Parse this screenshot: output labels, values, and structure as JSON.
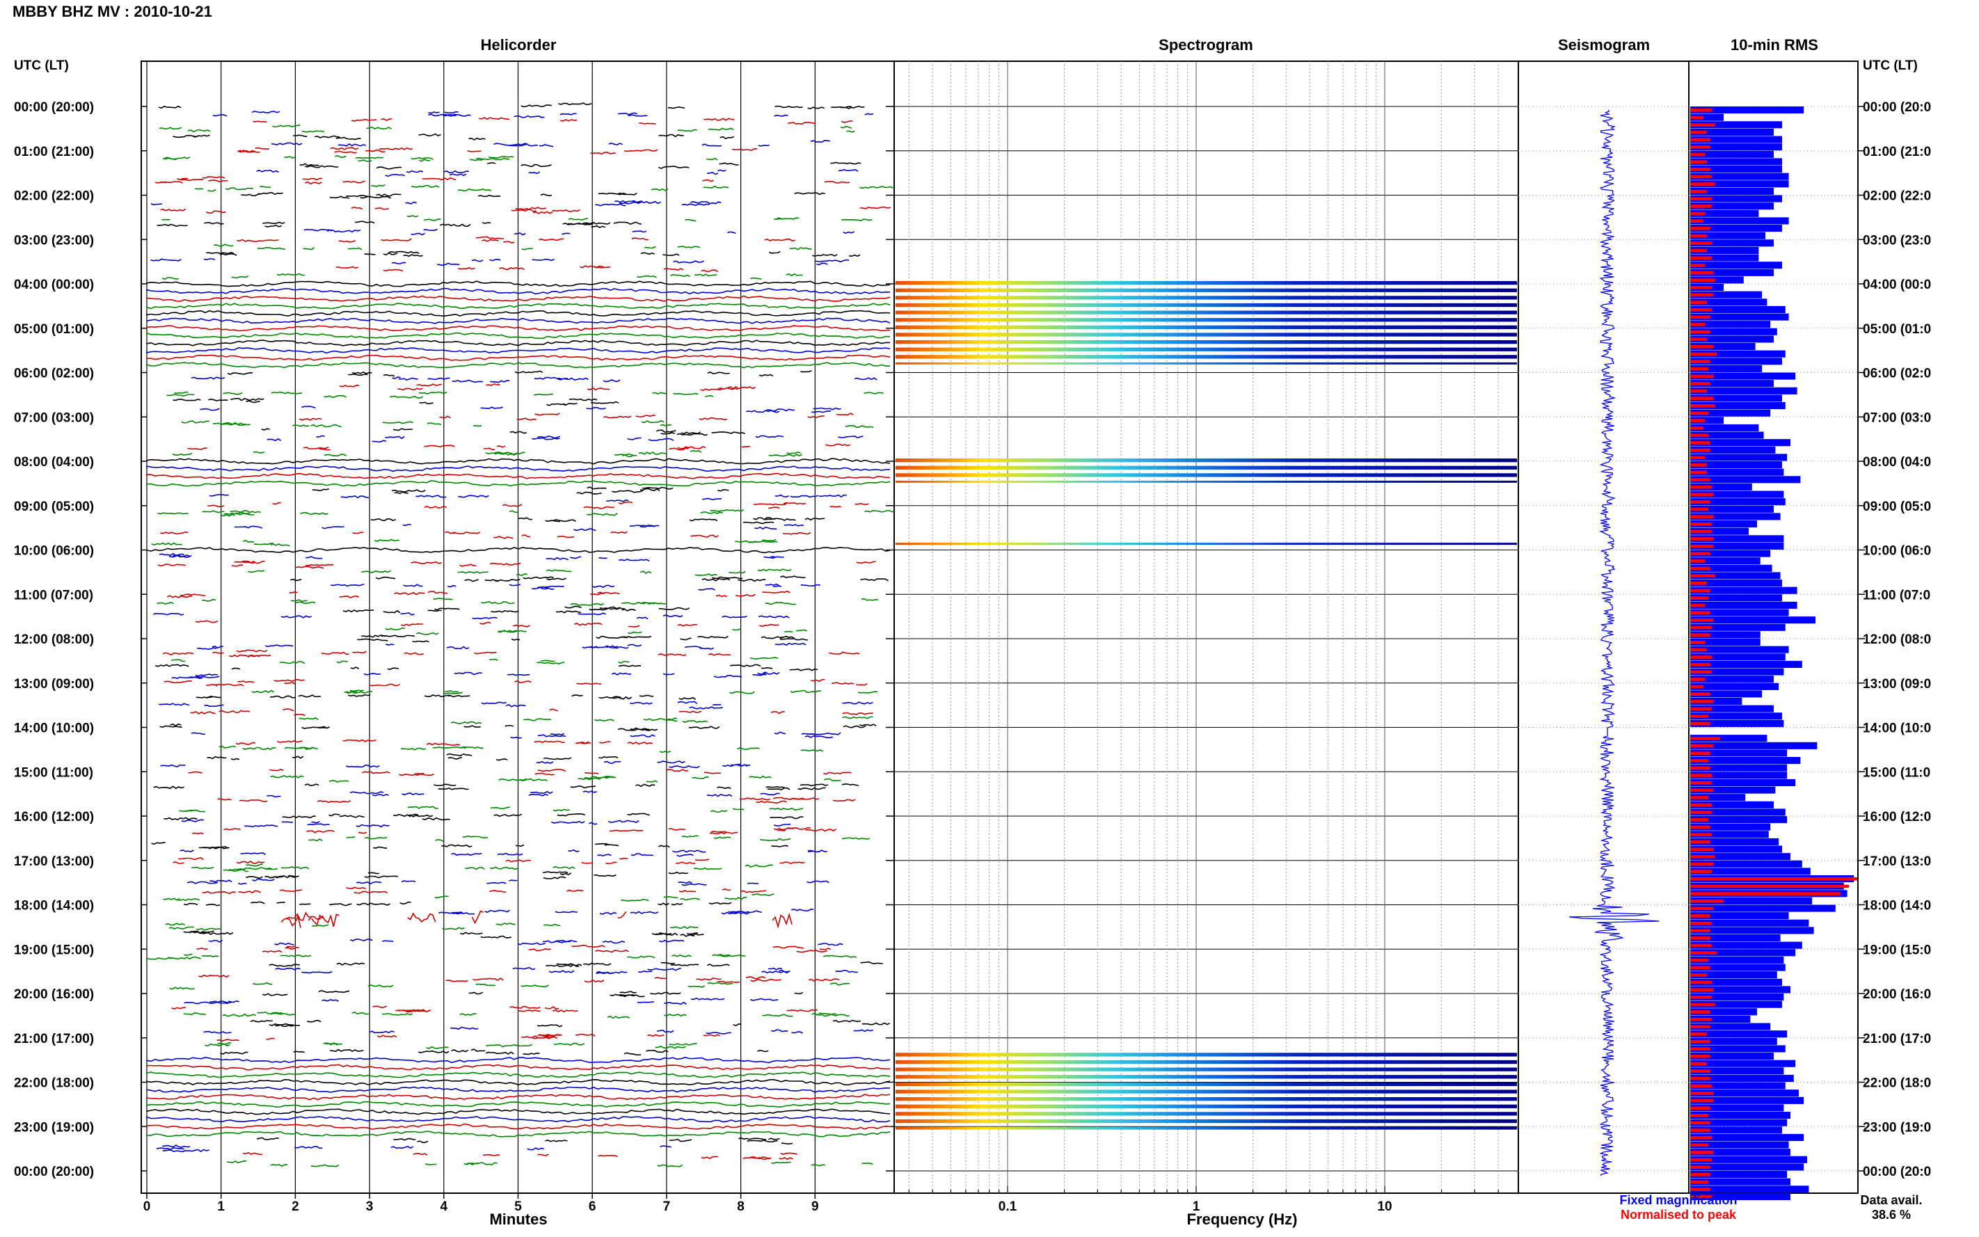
{
  "page": {
    "title": "MBBY BHZ MV : 2010-10-21"
  },
  "panels": {
    "helicorder": "Helicorder",
    "spectrogram": "Spectrogram",
    "seismogram": "Seismogram",
    "rms": "10-min RMS"
  },
  "time_axis": {
    "label": "UTC (LT)",
    "ticks": [
      "00:00 (20:00)",
      "01:00 (21:00)",
      "02:00 (22:00)",
      "03:00 (23:00)",
      "04:00 (00:00)",
      "05:00 (01:00)",
      "06:00 (02:00)",
      "07:00 (03:00)",
      "08:00 (04:00)",
      "09:00 (05:00)",
      "10:00 (06:00)",
      "11:00 (07:00)",
      "12:00 (08:00)",
      "13:00 (09:00)",
      "14:00 (10:00)",
      "15:00 (11:00)",
      "16:00 (12:00)",
      "17:00 (13:00)",
      "18:00 (14:00)",
      "19:00 (15:00)",
      "20:00 (16:00)",
      "21:00 (17:00)",
      "22:00 (18:00)",
      "23:00 (19:00)",
      "00:00 (20:00)"
    ],
    "right_ticks": [
      "00:00 (20:0",
      "01:00 (21:0",
      "02:00 (22:0",
      "03:00 (23:0",
      "04:00 (00:0",
      "05:00 (01:0",
      "06:00 (02:0",
      "07:00 (03:0",
      "08:00 (04:0",
      "09:00 (05:0",
      "10:00 (06:0",
      "11:00 (07:0",
      "12:00 (08:0",
      "13:00 (09:0",
      "14:00 (10:0",
      "15:00 (11:0",
      "16:00 (12:0",
      "17:00 (13:0",
      "18:00 (14:0",
      "19:00 (15:0",
      "20:00 (16:0",
      "21:00 (17:0",
      "22:00 (18:0",
      "23:00 (19:0",
      "00:00 (20:0"
    ]
  },
  "helicorder_axis": {
    "xlabel": "Minutes",
    "ticks": [
      "0",
      "1",
      "2",
      "3",
      "4",
      "5",
      "6",
      "7",
      "8",
      "9"
    ]
  },
  "spectrogram_axis": {
    "xlabel": "Frequency (Hz)",
    "ticks": [
      "0.1",
      "1",
      "10"
    ]
  },
  "legend": {
    "fixed": "Fixed magnification",
    "normalised": "Normalised to peak",
    "fixed_color": "#0000ff",
    "normalised_color": "#ff0000"
  },
  "data_availability": {
    "label": "Data avail.",
    "value": "38.6 %"
  },
  "colors": {
    "trace_colors": [
      "#000000",
      "#0000cc",
      "#cc0000",
      "#008800"
    ],
    "rms_fixed": "#0000ff",
    "rms_normalised": "#ff0000",
    "spectrogram_low": "#ff6600",
    "spectrogram_high": "#00008b"
  },
  "chart_data": {
    "type": "helicorder",
    "date": "2010-10-21",
    "station": "MBBY BHZ MV",
    "minutes_per_line": 10,
    "x_minutes_range": [
      0,
      10
    ],
    "frequency_range_hz": [
      0.03,
      40
    ],
    "frequency_scale": "log",
    "spectrogram_active_ranges_utc_hours": [
      [
        4.0,
        5.9
      ],
      [
        8.0,
        8.6
      ],
      [
        9.9,
        10.0
      ],
      [
        21.4,
        23.2
      ]
    ],
    "rms_10min": {
      "fixed": [
        0.68,
        0.2,
        0.55,
        0.5,
        0.55,
        0.55,
        0.5,
        0.55,
        0.55,
        0.59,
        0.59,
        0.5,
        0.55,
        0.5,
        0.41,
        0.59,
        0.55,
        0.45,
        0.5,
        0.41,
        0.41,
        0.55,
        0.5,
        0.32,
        0.2,
        0.43,
        0.46,
        0.57,
        0.59,
        0.48,
        0.52,
        0.5,
        0.39,
        0.57,
        0.55,
        0.43,
        0.63,
        0.5,
        0.64,
        0.55,
        0.57,
        0.48,
        0.2,
        0.41,
        0.44,
        0.6,
        0.51,
        0.58,
        0.55,
        0.56,
        0.66,
        0.37,
        0.56,
        0.57,
        0.5,
        0.54,
        0.4,
        0.35,
        0.56,
        0.56,
        0.48,
        0.42,
        0.49,
        0.54,
        0.55,
        0.64,
        0.55,
        0.64,
        0.59,
        0.75,
        0.57,
        0.42,
        0.42,
        0.59,
        0.57,
        0.67,
        0.56,
        0.5,
        0.53,
        0.43,
        0.31,
        0.5,
        0.55,
        0.56,
        0.73,
        0.46,
        0.76,
        0.58,
        0.66,
        0.58,
        0.58,
        0.63,
        0.51,
        0.33,
        0.5,
        0.57,
        0.58,
        0.48,
        0.47,
        0.53,
        0.55,
        0.6,
        0.67,
        0.72,
        0.98,
        0.92,
        0.94,
        0.73,
        0.87,
        0.59,
        0.71,
        0.74,
        0.54,
        0.67,
        0.63,
        0.56,
        0.57,
        0.52,
        0.55,
        0.6,
        0.56,
        0.55,
        0.4,
        0.36,
        0.48,
        0.58,
        0.52,
        0.57,
        0.5,
        0.63,
        0.56,
        0.62,
        0.57,
        0.65,
        0.68,
        0.56,
        0.6,
        0.58,
        0.55,
        0.68,
        0.59,
        0.6,
        0.7,
        0.68,
        0.58,
        0.6,
        0.71,
        0.6
      ],
      "normalised": [
        0.13,
        0.08,
        0.15,
        0.1,
        0.12,
        0.12,
        0.09,
        0.1,
        0.12,
        0.13,
        0.15,
        0.1,
        0.13,
        0.13,
        0.09,
        0.08,
        0.12,
        0.1,
        0.13,
        0.1,
        0.13,
        0.09,
        0.14,
        0.15,
        0.13,
        0.14,
        0.1,
        0.13,
        0.12,
        0.09,
        0.12,
        0.1,
        0.14,
        0.16,
        0.12,
        0.11,
        0.14,
        0.12,
        0.1,
        0.14,
        0.15,
        0.11,
        0.09,
        0.08,
        0.11,
        0.12,
        0.12,
        0.09,
        0.1,
        0.1,
        0.12,
        0.13,
        0.14,
        0.12,
        0.11,
        0.14,
        0.13,
        0.13,
        0.14,
        0.14,
        0.12,
        0.09,
        0.12,
        0.15,
        0.1,
        0.12,
        0.11,
        0.09,
        0.12,
        0.14,
        0.13,
        0.12,
        0.09,
        0.1,
        0.13,
        0.12,
        0.13,
        0.09,
        0.08,
        0.12,
        0.14,
        0.13,
        0.11,
        0.12,
        0.15,
        0.18,
        0.14,
        0.12,
        0.11,
        0.12,
        0.13,
        0.13,
        0.14,
        0.11,
        0.13,
        0.13,
        0.11,
        0.12,
        0.13,
        0.12,
        0.14,
        0.15,
        0.14,
        0.13,
        1.0,
        0.95,
        0.9,
        0.2,
        0.14,
        0.12,
        0.13,
        0.12,
        0.12,
        0.13,
        0.16,
        0.11,
        0.12,
        0.1,
        0.13,
        0.14,
        0.13,
        0.15,
        0.12,
        0.13,
        0.12,
        0.1,
        0.12,
        0.12,
        0.12,
        0.1,
        0.12,
        0.12,
        0.13,
        0.14,
        0.14,
        0.12,
        0.11,
        0.12,
        0.12,
        0.13,
        0.11,
        0.14,
        0.13,
        0.12,
        0.12,
        0.11,
        0.12,
        0.13
      ]
    },
    "rms_gaps_utc_hours": [
      [
        14.0,
        14.1
      ]
    ],
    "largest_event_utc": "18:20"
  }
}
